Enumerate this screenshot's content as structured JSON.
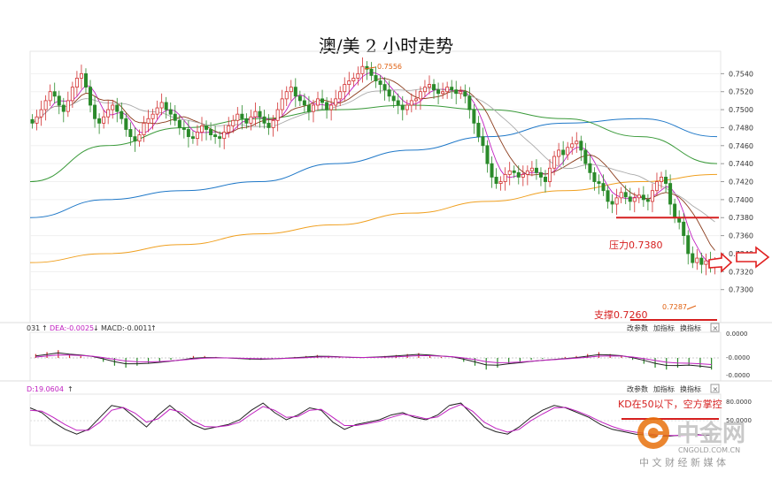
{
  "title": "澳/美 2 小时走势",
  "chart_data": {
    "type": "line",
    "title": "澳/美 2 小时走势",
    "candles": {
      "closes": [
        0.7485,
        0.7492,
        0.75,
        0.751,
        0.752,
        0.7515,
        0.7505,
        0.7498,
        0.751,
        0.7525,
        0.7535,
        0.754,
        0.7525,
        0.7505,
        0.749,
        0.7485,
        0.7492,
        0.75,
        0.7505,
        0.7498,
        0.749,
        0.7478,
        0.747,
        0.7465,
        0.7472,
        0.7485,
        0.749,
        0.7495,
        0.7502,
        0.7508,
        0.75,
        0.7495,
        0.7488,
        0.748,
        0.7478,
        0.747,
        0.7468,
        0.7475,
        0.7482,
        0.7478,
        0.7472,
        0.747,
        0.7468,
        0.7475,
        0.7482,
        0.7488,
        0.7495,
        0.749,
        0.7485,
        0.7492,
        0.7498,
        0.7492,
        0.7485,
        0.748,
        0.7488,
        0.75,
        0.7512,
        0.752,
        0.7525,
        0.7515,
        0.751,
        0.7505,
        0.7498,
        0.7505,
        0.7512,
        0.7508,
        0.75,
        0.7505,
        0.7512,
        0.752,
        0.7528,
        0.7532,
        0.7535,
        0.754,
        0.7548,
        0.7545,
        0.7538,
        0.7532,
        0.7528,
        0.7522,
        0.7515,
        0.751,
        0.7505,
        0.75,
        0.7505,
        0.751,
        0.7512,
        0.752,
        0.7525,
        0.7528,
        0.7522,
        0.7518,
        0.752,
        0.7525,
        0.7522,
        0.7518,
        0.752,
        0.7515,
        0.75,
        0.7485,
        0.747,
        0.746,
        0.744,
        0.7425,
        0.7418,
        0.742,
        0.7428,
        0.7432,
        0.743,
        0.7425,
        0.7428,
        0.7432,
        0.7435,
        0.743,
        0.7425,
        0.742,
        0.7435,
        0.7448,
        0.7455,
        0.745,
        0.7458,
        0.7462,
        0.7465,
        0.7455,
        0.744,
        0.743,
        0.742,
        0.7418,
        0.741,
        0.7398,
        0.7395,
        0.7402,
        0.7408,
        0.7403,
        0.7398,
        0.7402,
        0.7405,
        0.74,
        0.7398,
        0.741,
        0.742,
        0.7425,
        0.7418,
        0.7395,
        0.738,
        0.7375,
        0.736,
        0.734,
        0.733,
        0.7335,
        0.7328,
        0.7332,
        0.7325,
        0.733
      ]
    },
    "lines": [
      {
        "name": "",
        "color": "#1f78c8",
        "values": [
          0.738,
          0.74,
          0.741,
          0.742,
          0.744,
          0.7455,
          0.747,
          0.7485,
          0.749,
          0.747
        ]
      },
      {
        "name": "",
        "color": "#f0a020",
        "values": [
          0.733,
          0.734,
          0.735,
          0.7362,
          0.7372,
          0.7385,
          0.7398,
          0.741,
          0.742,
          0.7428
        ]
      },
      {
        "name": "",
        "color": "#3a9a3a",
        "values": [
          0.742,
          0.746,
          0.748,
          0.749,
          0.75,
          0.7505,
          0.75,
          0.749,
          0.747,
          0.744
        ]
      }
    ],
    "y_ticks": [
      "0.7540",
      "0.7520",
      "0.7500",
      "0.7480",
      "0.7460",
      "0.7440",
      "0.7420",
      "0.7400",
      "0.7380",
      "0.7360",
      "0.7340",
      "0.7320",
      "0.7300"
    ],
    "ylim": [
      0.7283,
      0.756
    ],
    "high_label": "0.7556",
    "low_label": "0.7287",
    "resistance": {
      "label": "压力0.7380",
      "value": 0.738
    },
    "support": {
      "label": "支撑0.7260"
    },
    "macd": {
      "header_prefix": "031",
      "dea_label": "DEA:-0.0025",
      "macd_label": "MACD:-0.0011",
      "y_ticks": [
        "0.0000",
        "-0.0000",
        "-0.0000"
      ],
      "hist": [
        0.2,
        0.3,
        0.4,
        0.2,
        0.1,
        0.0,
        -0.2,
        -0.4,
        -0.5,
        -0.4,
        -0.3,
        -0.2,
        -0.1,
        0.0,
        0.1,
        0.1,
        0.05,
        0.0,
        -0.05,
        -0.1,
        -0.1,
        -0.05,
        0.0,
        0.05,
        0.1,
        0.15,
        0.1,
        0.05,
        0.0,
        0.0,
        0.05,
        0.1,
        0.15,
        0.2,
        0.25,
        0.15,
        0.05,
        0.0,
        -0.2,
        -0.4,
        -0.6,
        -0.5,
        -0.3,
        -0.2,
        -0.1,
        -0.05,
        0.0,
        0.05,
        0.1,
        0.2,
        0.3,
        0.2,
        0.1,
        -0.1,
        -0.3,
        -0.5,
        -0.6,
        -0.5,
        -0.4,
        -0.5,
        -0.6
      ]
    },
    "kd": {
      "header": "D:19.0604",
      "y_ticks": [
        "80.0000",
        "50.0000"
      ],
      "annotation": "KD在50以下，空方掌控",
      "k": [
        75,
        65,
        45,
        30,
        20,
        30,
        55,
        80,
        75,
        55,
        35,
        60,
        80,
        60,
        40,
        30,
        35,
        40,
        50,
        70,
        85,
        65,
        50,
        60,
        75,
        70,
        45,
        30,
        40,
        45,
        50,
        60,
        65,
        55,
        50,
        60,
        80,
        85,
        60,
        35,
        25,
        20,
        35,
        55,
        70,
        80,
        75,
        65,
        55,
        40,
        30,
        25,
        20,
        18,
        15,
        16,
        18,
        20,
        17,
        19
      ],
      "d": [
        70,
        68,
        55,
        40,
        28,
        28,
        45,
        70,
        76,
        64,
        45,
        52,
        72,
        66,
        48,
        36,
        35,
        38,
        45,
        62,
        78,
        70,
        55,
        57,
        70,
        72,
        55,
        38,
        38,
        42,
        47,
        55,
        62,
        58,
        52,
        56,
        72,
        82,
        68,
        45,
        32,
        24,
        30,
        48,
        62,
        75,
        76,
        68,
        58,
        46,
        36,
        28,
        24,
        21,
        18,
        17,
        17,
        18,
        18,
        19
      ]
    },
    "tools": [
      "改参数",
      "加指标",
      "换指标"
    ],
    "close_box": "×"
  },
  "watermark": {
    "name": "中金网",
    "url": "CNGOLD.COM.CN",
    "tagline": "中 文 财 经 新 媒 体"
  }
}
